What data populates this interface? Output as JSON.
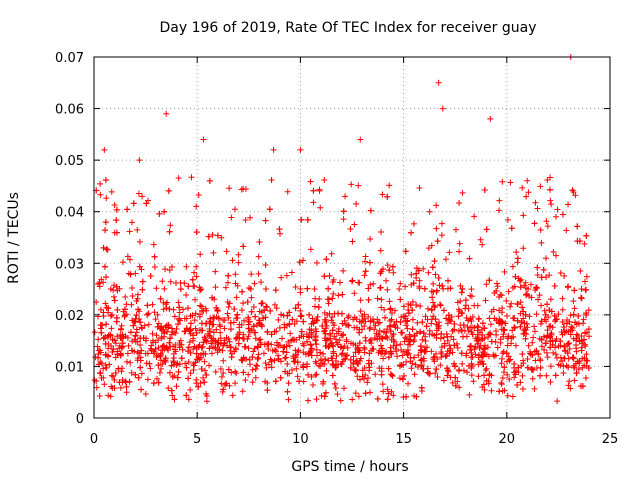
{
  "chart_data": {
    "type": "scatter",
    "title": "Day 196 of 2019, Rate Of TEC Index for receiver guay",
    "xlabel": "GPS time / hours",
    "ylabel": "ROTI / TECUs",
    "xlim": [
      0,
      25
    ],
    "ylim": [
      0,
      0.07
    ],
    "xticks": [
      0,
      5,
      10,
      15,
      20,
      25
    ],
    "yticks": [
      0,
      0.01,
      0.02,
      0.03,
      0.04,
      0.05,
      0.06,
      0.07
    ],
    "xtick_labels": [
      "0",
      "5",
      "10",
      "15",
      "20",
      "25"
    ],
    "ytick_labels": [
      "0",
      "0.01",
      "0.02",
      "0.03",
      "0.04",
      "0.05",
      "0.06",
      "0.07"
    ],
    "grid": true,
    "marker": "plus",
    "color": "#ff0000",
    "series": [
      {
        "name": "ROTI",
        "x_range": [
          0,
          24
        ],
        "typical_range": [
          0.005,
          0.025
        ],
        "notable_points": [
          {
            "x": 0.5,
            "y": 0.052
          },
          {
            "x": 2.2,
            "y": 0.05
          },
          {
            "x": 3.5,
            "y": 0.059
          },
          {
            "x": 5.3,
            "y": 0.054
          },
          {
            "x": 8.7,
            "y": 0.052
          },
          {
            "x": 10.0,
            "y": 0.052
          },
          {
            "x": 12.9,
            "y": 0.054
          },
          {
            "x": 16.7,
            "y": 0.065
          },
          {
            "x": 16.9,
            "y": 0.06
          },
          {
            "x": 19.2,
            "y": 0.058
          },
          {
            "x": 23.1,
            "y": 0.07
          }
        ]
      }
    ]
  }
}
